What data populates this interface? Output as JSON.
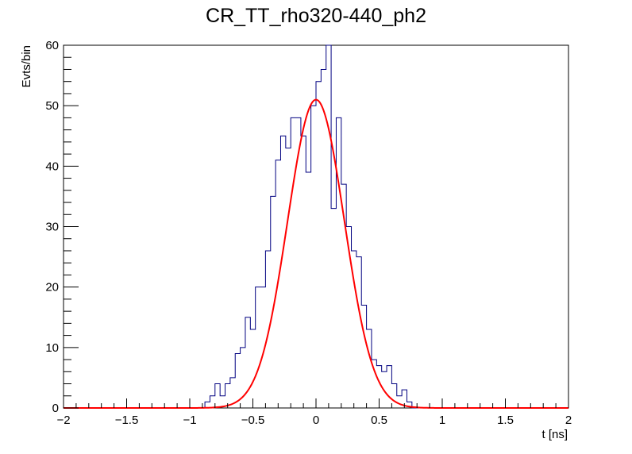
{
  "chart_data": {
    "type": "histogram",
    "title": "CR_TT_rho320-440_ph2",
    "xlabel": "t [ns]",
    "ylabel": "Evts/bin",
    "xlim": [
      -2,
      2
    ],
    "ylim": [
      0,
      60
    ],
    "x_ticks": [
      -2,
      -1.5,
      -1,
      -0.5,
      0,
      0.5,
      1,
      1.5,
      2
    ],
    "y_ticks": [
      0,
      10,
      20,
      30,
      40,
      50,
      60
    ],
    "grid": false,
    "legend": "none",
    "bin_width": 0.04,
    "bin_start": -2,
    "counts": [
      0,
      0,
      0,
      0,
      0,
      0,
      0,
      0,
      0,
      0,
      0,
      0,
      0,
      0,
      0,
      0,
      0,
      0,
      0,
      0,
      0,
      0,
      0,
      0,
      0,
      0,
      0,
      0,
      1,
      2,
      4,
      2,
      4,
      5,
      9,
      10,
      15,
      13,
      20,
      20,
      26,
      35,
      41,
      45,
      43,
      48,
      48,
      45,
      39,
      50,
      54,
      56,
      60,
      33,
      48,
      37,
      30,
      26,
      25,
      17,
      13,
      8,
      7,
      6,
      7,
      4,
      2,
      3,
      1,
      0,
      0,
      0,
      0,
      0,
      0,
      0,
      0,
      0,
      0,
      0,
      0,
      0,
      0,
      0,
      0,
      0,
      0,
      0,
      0,
      0,
      0,
      0,
      0,
      0,
      0,
      0,
      0,
      0,
      0,
      0
    ],
    "fit": {
      "type": "gaussian",
      "amplitude": 51,
      "mean": 0.0,
      "sigma": 0.225
    },
    "colors": {
      "histogram": "#000080",
      "fit": "#ff0000"
    }
  }
}
